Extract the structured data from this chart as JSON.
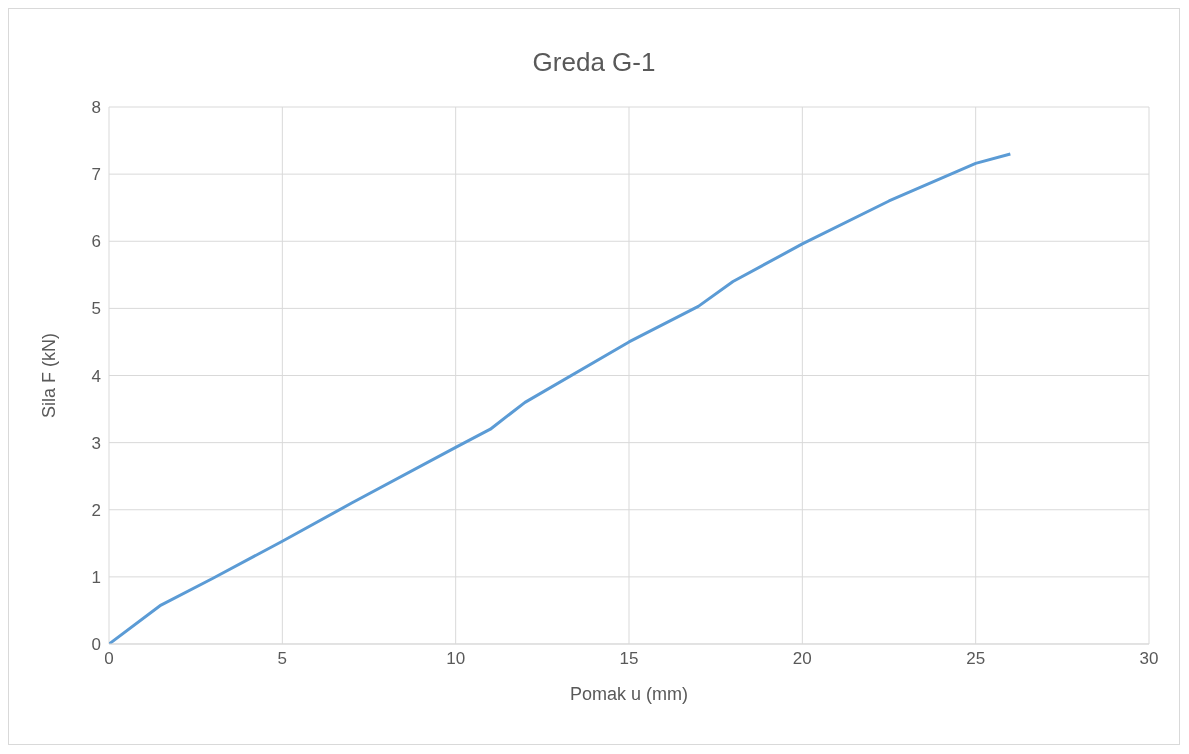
{
  "chart_data": {
    "type": "line",
    "title": "Greda G-1",
    "xlabel": "Pomak u (mm)",
    "ylabel": "Sila F (kN)",
    "series": [
      {
        "color": "#5b9bd5",
        "x": [
          0,
          1.5,
          3,
          5,
          7,
          10,
          11,
          12,
          15,
          17,
          18,
          20,
          22.5,
          25,
          26
        ],
        "values": [
          0,
          0.58,
          0.98,
          1.53,
          2.1,
          2.93,
          3.2,
          3.6,
          4.5,
          5.03,
          5.4,
          5.96,
          6.6,
          7.16,
          7.3
        ]
      }
    ],
    "xlim": [
      0,
      30
    ],
    "xticks": [
      0,
      5,
      10,
      15,
      20,
      25,
      30
    ],
    "ylim": [
      0,
      8
    ],
    "yticks": [
      0,
      1,
      2,
      3,
      4,
      5,
      6,
      7,
      8
    ],
    "grid": true,
    "legend": false,
    "marker": "none",
    "line_style": "solid"
  }
}
